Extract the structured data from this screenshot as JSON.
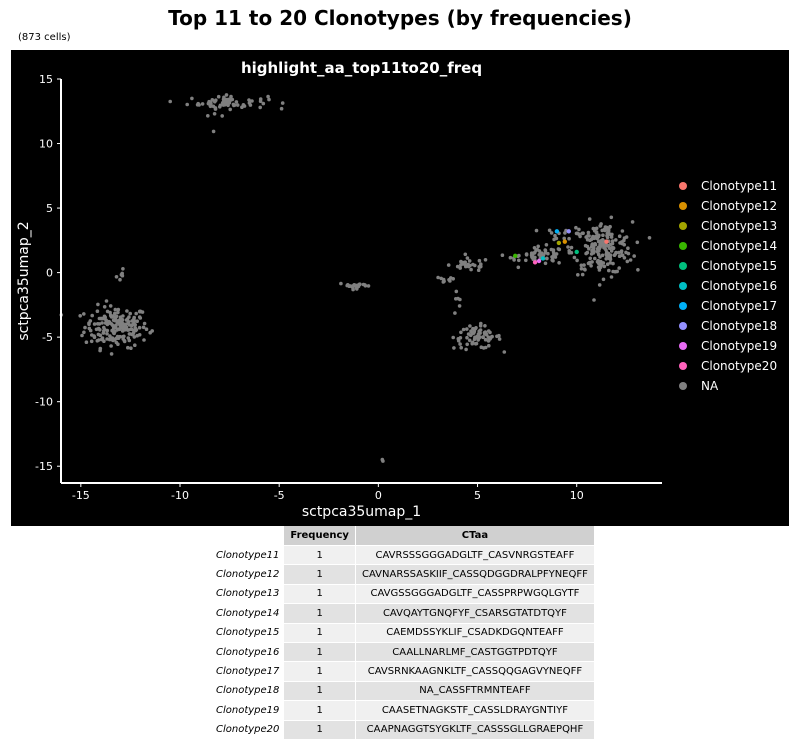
{
  "page": {
    "title": "Top 11 to 20 Clonotypes (by frequencies)",
    "subtitle": "(873 cells)"
  },
  "chart_data": {
    "type": "scatter",
    "title": "highlight_aa_top11to20_freq",
    "xlabel": "sctpca35umap_1",
    "ylabel": "sctpca35umap_2",
    "xlim": [
      -16,
      14.3
    ],
    "ylim": [
      -16.3,
      15
    ],
    "xticks": [
      -15,
      -10,
      -5,
      0,
      5,
      10
    ],
    "yticks": [
      15,
      10,
      5,
      0,
      -5,
      -10,
      -15
    ],
    "background": "#000000",
    "axis_color": "#ffffff",
    "grid": false,
    "legend_position": "right",
    "clusters": [
      {
        "name": "NA",
        "center": [
          -13.2,
          -4.2
        ],
        "spread": [
          0.8,
          0.8
        ],
        "n": 190
      },
      {
        "name": "NA",
        "center": [
          -13.0,
          -0.4
        ],
        "spread": [
          0.15,
          0.3
        ],
        "n": 6
      },
      {
        "name": "NA",
        "center": [
          -7.6,
          13.2
        ],
        "spread": [
          1.0,
          0.25
        ],
        "n": 60
      },
      {
        "name": "NA",
        "center": [
          -8.0,
          12.3
        ],
        "spread": [
          0.3,
          0.4
        ],
        "n": 8
      },
      {
        "name": "NA",
        "center": [
          -1.1,
          -1.0
        ],
        "spread": [
          0.45,
          0.12
        ],
        "n": 22
      },
      {
        "name": "NA",
        "center": [
          0.15,
          -14.6
        ],
        "spread": [
          0.05,
          0.05
        ],
        "n": 2
      },
      {
        "name": "NA",
        "center": [
          5.0,
          -5.0
        ],
        "spread": [
          0.6,
          0.45
        ],
        "n": 70
      },
      {
        "name": "NA",
        "center": [
          4.6,
          0.6
        ],
        "spread": [
          0.5,
          0.25
        ],
        "n": 28
      },
      {
        "name": "NA",
        "center": [
          3.3,
          -0.6
        ],
        "spread": [
          0.3,
          0.15
        ],
        "n": 9
      },
      {
        "name": "NA",
        "center": [
          4.0,
          -2.4
        ],
        "spread": [
          0.15,
          0.5
        ],
        "n": 6
      },
      {
        "name": "NA",
        "center": [
          6.8,
          1.2
        ],
        "spread": [
          0.4,
          0.1
        ],
        "n": 5
      },
      {
        "name": "NA",
        "center": [
          8.3,
          1.3
        ],
        "spread": [
          0.55,
          0.35
        ],
        "n": 55
      },
      {
        "name": "NA",
        "center": [
          9.4,
          3.0
        ],
        "spread": [
          0.5,
          0.25
        ],
        "n": 14
      },
      {
        "name": "NA",
        "center": [
          11.3,
          1.9
        ],
        "spread": [
          0.75,
          1.0
        ],
        "n": 200
      }
    ],
    "highlighted_points": [
      {
        "name": "Clonotype11",
        "x": 11.5,
        "y": 2.4
      },
      {
        "name": "Clonotype12",
        "x": 9.4,
        "y": 2.4
      },
      {
        "name": "Clonotype13",
        "x": 9.1,
        "y": 2.3
      },
      {
        "name": "Clonotype14",
        "x": 6.9,
        "y": 1.3
      },
      {
        "name": "Clonotype15",
        "x": 10.0,
        "y": 1.6
      },
      {
        "name": "Clonotype16",
        "x": 8.3,
        "y": 1.1
      },
      {
        "name": "Clonotype17",
        "x": 9.0,
        "y": 3.2
      },
      {
        "name": "Clonotype18",
        "x": 9.6,
        "y": 3.2
      },
      {
        "name": "Clonotype19",
        "x": 8.1,
        "y": 0.9
      },
      {
        "name": "Clonotype20",
        "x": 7.9,
        "y": 0.8
      }
    ],
    "series": [
      {
        "name": "Clonotype11",
        "color": "#F8766D"
      },
      {
        "name": "Clonotype12",
        "color": "#D89000"
      },
      {
        "name": "Clonotype13",
        "color": "#A3A500"
      },
      {
        "name": "Clonotype14",
        "color": "#39B600"
      },
      {
        "name": "Clonotype15",
        "color": "#00BF7D"
      },
      {
        "name": "Clonotype16",
        "color": "#00BFC4"
      },
      {
        "name": "Clonotype17",
        "color": "#00B0F6"
      },
      {
        "name": "Clonotype18",
        "color": "#9590FF"
      },
      {
        "name": "Clonotype19",
        "color": "#E76BF3"
      },
      {
        "name": "Clonotype20",
        "color": "#FF62BC"
      },
      {
        "name": "NA",
        "color": "#808080"
      }
    ]
  },
  "table": {
    "headers": [
      "Frequency",
      "CTaa"
    ],
    "rows": [
      {
        "name": "Clonotype11",
        "frequency": "1",
        "ctaa": "CAVRSSSGGGADGLTF_CASVNRGSTEAFF"
      },
      {
        "name": "Clonotype12",
        "frequency": "1",
        "ctaa": "CAVNARSSASKIIF_CASSQDGGDRALPFYNEQFF"
      },
      {
        "name": "Clonotype13",
        "frequency": "1",
        "ctaa": "CAVGSSGGGADGLTF_CASSPRPWGQLGYTF"
      },
      {
        "name": "Clonotype14",
        "frequency": "1",
        "ctaa": "CAVQAYTGNQFYF_CSARSGTATDTQYF"
      },
      {
        "name": "Clonotype15",
        "frequency": "1",
        "ctaa": "CAEMDSSYKLIF_CSADKDGQNTEAFF"
      },
      {
        "name": "Clonotype16",
        "frequency": "1",
        "ctaa": "CAALLNARLMF_CASTGGTPDTQYF"
      },
      {
        "name": "Clonotype17",
        "frequency": "1",
        "ctaa": "CAVSRNKAAGNKLTF_CASSQQGAGVYNEQFF"
      },
      {
        "name": "Clonotype18",
        "frequency": "1",
        "ctaa": "NA_CASSFTRMNTEAFF"
      },
      {
        "name": "Clonotype19",
        "frequency": "1",
        "ctaa": "CAASETNAGKSTF_CASSLDRAYGNTIYF"
      },
      {
        "name": "Clonotype20",
        "frequency": "1",
        "ctaa": "CAAPNAGGTSYGKLTF_CASSSGLLGRAEPQHF"
      }
    ]
  }
}
